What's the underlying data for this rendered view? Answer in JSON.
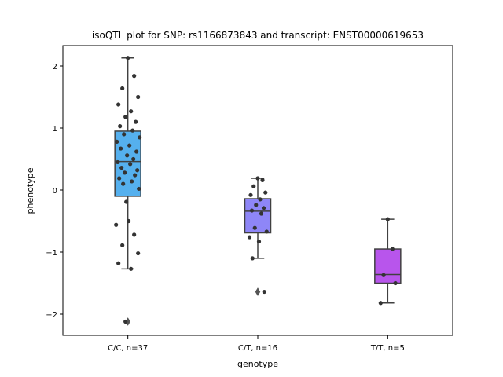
{
  "chart_data": {
    "type": "box",
    "title": "isoQTL plot for SNP: rs1166873843 and transcript: ENST00000619653",
    "xlabel": "genotype",
    "ylabel": "phenotype",
    "ylim": [
      -2.33,
      2.33
    ],
    "yticks": [
      {
        "value": 2,
        "label": "2"
      },
      {
        "value": 1,
        "label": "1"
      },
      {
        "value": 0,
        "label": "0"
      },
      {
        "value": -1,
        "label": "−1"
      },
      {
        "value": -2,
        "label": "−2"
      }
    ],
    "grid": false,
    "categories": [
      "C/C, n=37",
      "C/T, n=16",
      "T/T, n=5"
    ],
    "colors": [
      "#55b0ee",
      "#8e86f7",
      "#b855ec"
    ],
    "boxes": [
      {
        "q1": -0.1,
        "median": 0.46,
        "q3": 0.95,
        "whisker_low": -1.27,
        "whisker_high": 2.13,
        "outliers": [
          -2.12
        ]
      },
      {
        "q1": -0.69,
        "median": -0.34,
        "q3": -0.14,
        "whisker_low": -1.1,
        "whisker_high": 0.19,
        "outliers": [
          -1.64
        ]
      },
      {
        "q1": -1.5,
        "median": -1.36,
        "q3": -0.95,
        "whisker_low": -1.82,
        "whisker_high": -0.47,
        "outliers": []
      }
    ],
    "points": [
      {
        "category": 0,
        "y": [
          2.13,
          1.84,
          1.64,
          1.5,
          1.38,
          1.27,
          1.18,
          1.1,
          1.03,
          0.96,
          0.9,
          0.85,
          0.78,
          0.72,
          0.67,
          0.62,
          0.56,
          0.5,
          0.45,
          0.42,
          0.36,
          0.32,
          0.28,
          0.24,
          0.19,
          0.14,
          0.1,
          0.02,
          -0.19,
          -0.5,
          -0.56,
          -0.72,
          -0.89,
          -1.02,
          -1.18,
          -1.27,
          -2.12
        ]
      },
      {
        "category": 1,
        "y": [
          0.19,
          0.16,
          0.06,
          -0.04,
          -0.08,
          -0.15,
          -0.24,
          -0.29,
          -0.33,
          -0.38,
          -0.61,
          -0.67,
          -0.76,
          -0.83,
          -1.1,
          -1.64
        ]
      },
      {
        "category": 2,
        "y": [
          -0.47,
          -0.95,
          -1.37,
          -1.5,
          -1.82
        ]
      }
    ]
  }
}
